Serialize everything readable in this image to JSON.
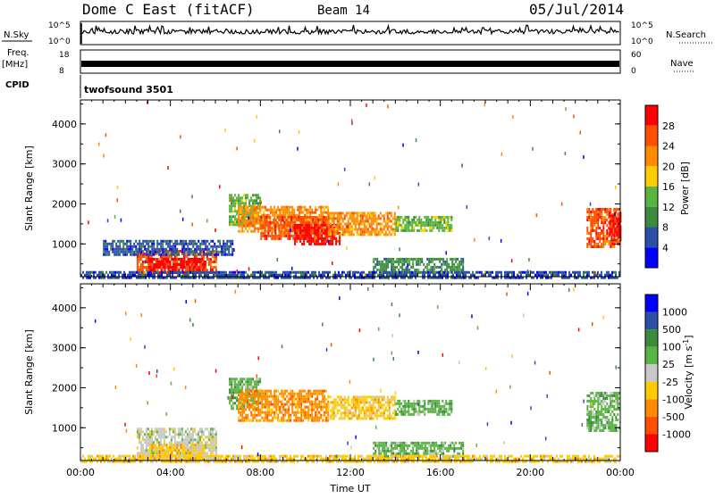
{
  "header": {
    "title": "Dome C East (fitACF)",
    "beam": "Beam 14",
    "date": "05/Jul/2014"
  },
  "top_panels": {
    "nsky_label": "N.Sky",
    "nsky_ticks": [
      "10^5",
      "10^0"
    ],
    "nsearch_label": "N.Search",
    "nsearch_ticks": [
      "10^5",
      "10^0"
    ],
    "freq_label_line1": "Freq.",
    "freq_label_line2": "[MHz]",
    "freq_ticks": [
      "18",
      "8"
    ],
    "nave_label": "Nave",
    "nave_ticks": [
      "60",
      "0"
    ],
    "cpid_label": "CPID",
    "cpid_value": "twofsound 3501"
  },
  "colors": {
    "power": [
      "#0000ff",
      "#2c4fa8",
      "#3c8a3c",
      "#5ab441",
      "#ffcc00",
      "#ff8c00",
      "#ff5000",
      "#ff0000"
    ],
    "velocity": [
      "#0000ff",
      "#2c4fa8",
      "#3c8a3c",
      "#5ab441",
      "#c8c8c8",
      "#ffcc00",
      "#ff8c00",
      "#ff5000",
      "#ff0000"
    ]
  },
  "chart_data": [
    {
      "type": "heatmap",
      "title": "",
      "xlabel": "",
      "ylabel": "Slant Range [km]",
      "x_ticks": [
        "00:00",
        "04:00",
        "08:00",
        "12:00",
        "16:00",
        "20:00",
        "00:00"
      ],
      "xlim": [
        0,
        24
      ],
      "y_ticks": [
        "4000",
        "3000",
        "2000",
        "1000"
      ],
      "ylim": [
        180,
        4600
      ],
      "colorbar_label": "Power [dB]",
      "colorbar_ticks": [
        "28",
        "24",
        "20",
        "16",
        "12",
        "8",
        "4"
      ],
      "color_levels": [
        0,
        4,
        8,
        12,
        16,
        20,
        24,
        28,
        32
      ],
      "regions": [
        {
          "t0": 6.6,
          "t1": 8.0,
          "r0": 1500,
          "r1": 2250,
          "level": 3
        },
        {
          "t0": 7.0,
          "t1": 11.0,
          "r0": 1300,
          "r1": 1950,
          "level": 5
        },
        {
          "t0": 8.0,
          "t1": 11.0,
          "r0": 1100,
          "r1": 1700,
          "level": 6
        },
        {
          "t0": 9.5,
          "t1": 11.5,
          "r0": 1000,
          "r1": 1500,
          "level": 7
        },
        {
          "t0": 11.0,
          "t1": 14.0,
          "r0": 1200,
          "r1": 1800,
          "level": 5
        },
        {
          "t0": 14.0,
          "t1": 16.5,
          "r0": 1300,
          "r1": 1700,
          "level": 3
        },
        {
          "t0": 2.5,
          "t1": 6.0,
          "r0": 300,
          "r1": 850,
          "level": 6
        },
        {
          "t0": 3.0,
          "t1": 5.5,
          "r0": 250,
          "r1": 650,
          "level": 7
        },
        {
          "t0": 1.0,
          "t1": 6.8,
          "r0": 750,
          "r1": 1100,
          "level": 1
        },
        {
          "t0": 13.0,
          "t1": 17.0,
          "r0": 300,
          "r1": 650,
          "level": 2
        },
        {
          "t0": 22.5,
          "t1": 24.0,
          "r0": 900,
          "r1": 1900,
          "level": 6
        },
        {
          "t0": 23.5,
          "t1": 24.0,
          "r0": 1100,
          "r1": 1800,
          "level": 7
        },
        {
          "t0": 0.0,
          "t1": 24.0,
          "r0": 180,
          "r1": 320,
          "level": 1
        }
      ]
    },
    {
      "type": "heatmap",
      "title": "",
      "xlabel": "Time UT",
      "ylabel": "Slant Range [km]",
      "x_ticks": [
        "00:00",
        "04:00",
        "08:00",
        "12:00",
        "16:00",
        "20:00",
        "00:00"
      ],
      "xlim": [
        0,
        24
      ],
      "y_ticks": [
        "4000",
        "3000",
        "2000",
        "1000"
      ],
      "ylim": [
        180,
        4600
      ],
      "colorbar_label": "Velocity [m s",
      "colorbar_label_sup": "-1",
      "colorbar_label_end": "]",
      "colorbar_ticks": [
        "1000",
        "500",
        "100",
        "25",
        "-25",
        "-100",
        "-500",
        "-1000"
      ],
      "regions": [
        {
          "t0": 6.6,
          "t1": 8.0,
          "r0": 1500,
          "r1": 2250,
          "level": 3
        },
        {
          "t0": 7.0,
          "t1": 11.0,
          "r0": 1200,
          "r1": 1950,
          "level": 6
        },
        {
          "t0": 11.0,
          "t1": 14.0,
          "r0": 1200,
          "r1": 1800,
          "level": 5
        },
        {
          "t0": 14.0,
          "t1": 16.5,
          "r0": 1300,
          "r1": 1700,
          "level": 3
        },
        {
          "t0": 2.5,
          "t1": 6.0,
          "r0": 250,
          "r1": 1000,
          "level": 4
        },
        {
          "t0": 3.0,
          "t1": 5.5,
          "r0": 250,
          "r1": 600,
          "level": 5
        },
        {
          "t0": 13.0,
          "t1": 17.0,
          "r0": 300,
          "r1": 650,
          "level": 3
        },
        {
          "t0": 22.5,
          "t1": 24.0,
          "r0": 900,
          "r1": 1900,
          "level": 3
        },
        {
          "t0": 0.0,
          "t1": 24.0,
          "r0": 180,
          "r1": 320,
          "level": 5
        }
      ]
    }
  ]
}
